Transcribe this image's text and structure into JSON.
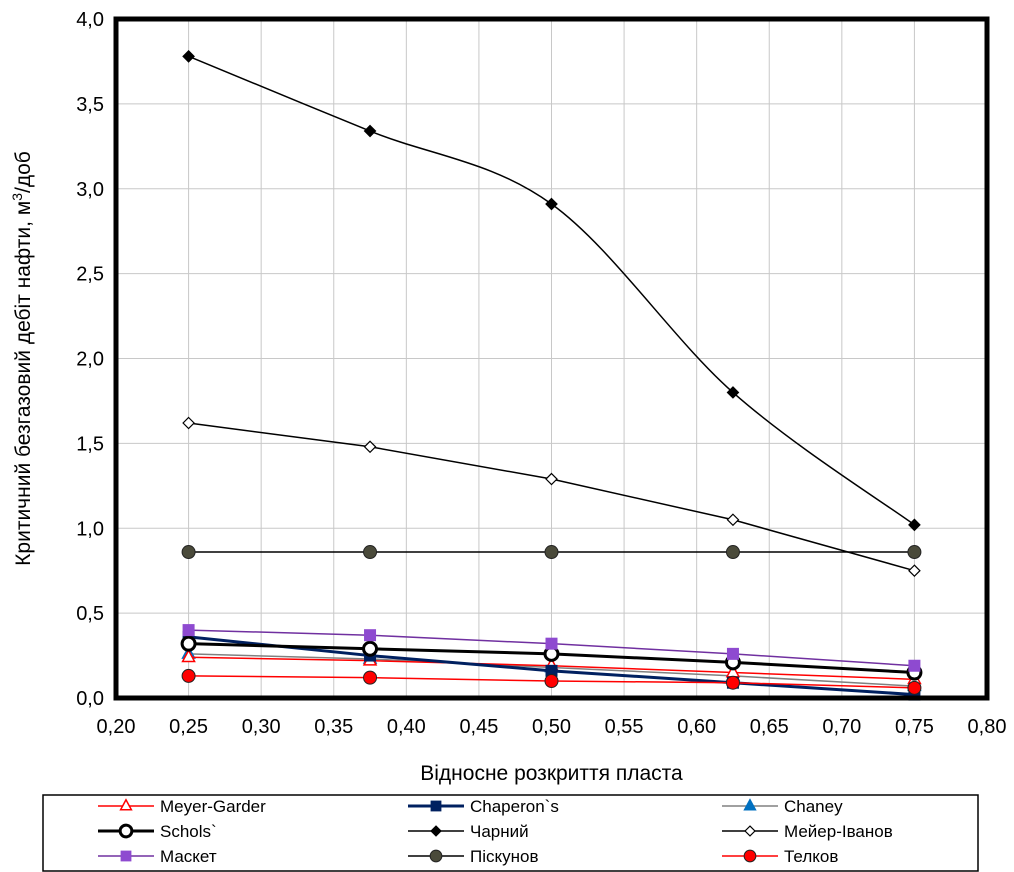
{
  "chart_data": {
    "type": "line",
    "xlabel": "Відносне розкриття пласта",
    "ylabel": "Критичний безгазовий  дебіт нафти, м",
    "ylabel_sup": "3",
    "ylabel_tail": "/доб",
    "xlim": [
      0.2,
      0.8
    ],
    "ylim": [
      0.0,
      4.0
    ],
    "x_ticks": [
      "0,20",
      "0,25",
      "0,30",
      "0,35",
      "0,40",
      "0,45",
      "0,50",
      "0,55",
      "0,60",
      "0,65",
      "0,70",
      "0,75",
      "0,80"
    ],
    "y_ticks": [
      "0,0",
      "0,5",
      "1,0",
      "1,5",
      "2,0",
      "2,5",
      "3,0",
      "3,5",
      "4,0"
    ],
    "grid": true,
    "legend_position": "bottom",
    "x": [
      0.25,
      0.375,
      0.5,
      0.625,
      0.75
    ],
    "series": [
      {
        "name": "Meyer-Garder",
        "values": [
          0.24,
          0.22,
          0.19,
          0.15,
          0.11
        ],
        "color": "#ff0000",
        "marker": "triangle-open",
        "line_width": 1.5,
        "smooth": false
      },
      {
        "name": "Chaperon`s",
        "values": [
          0.36,
          0.25,
          0.16,
          0.09,
          0.02
        ],
        "color": "#002060",
        "marker": "square",
        "line_width": 3,
        "smooth": false
      },
      {
        "name": "Chaney",
        "values": [
          0.26,
          0.23,
          0.18,
          0.13,
          0.07
        ],
        "color": "#808080",
        "marker": "triangle",
        "marker_color": "#0070c0",
        "line_width": 1.5,
        "smooth": false
      },
      {
        "name": "Schols`",
        "values": [
          0.32,
          0.29,
          0.26,
          0.21,
          0.15
        ],
        "color": "#000000",
        "marker": "circle-open",
        "line_width": 3,
        "smooth": false
      },
      {
        "name": "Чарний",
        "values": [
          3.78,
          3.34,
          2.91,
          1.8,
          1.02
        ],
        "color": "#000000",
        "marker": "diamond",
        "line_width": 1.5,
        "smooth": true
      },
      {
        "name": "Мейер-Іванов",
        "values": [
          1.62,
          1.48,
          1.29,
          1.05,
          0.75
        ],
        "color": "#000000",
        "marker": "diamond-open",
        "line_width": 1.5,
        "smooth": false
      },
      {
        "name": "Маскет",
        "values": [
          0.4,
          0.37,
          0.32,
          0.26,
          0.19
        ],
        "color": "#7030a0",
        "marker": "square",
        "marker_color": "#8e4ad0",
        "line_width": 1.5,
        "smooth": false
      },
      {
        "name": "Піскунов",
        "values": [
          0.86,
          0.86,
          0.86,
          0.86,
          0.86
        ],
        "color": "#000000",
        "marker": "circle",
        "marker_color": "#4a4a3a",
        "line_width": 1.5,
        "smooth": false
      },
      {
        "name": "Телков",
        "values": [
          0.13,
          0.12,
          0.1,
          0.09,
          0.06
        ],
        "color": "#ff0000",
        "marker": "circle",
        "marker_color": "#ff0000",
        "line_width": 1.5,
        "smooth": false
      }
    ]
  }
}
